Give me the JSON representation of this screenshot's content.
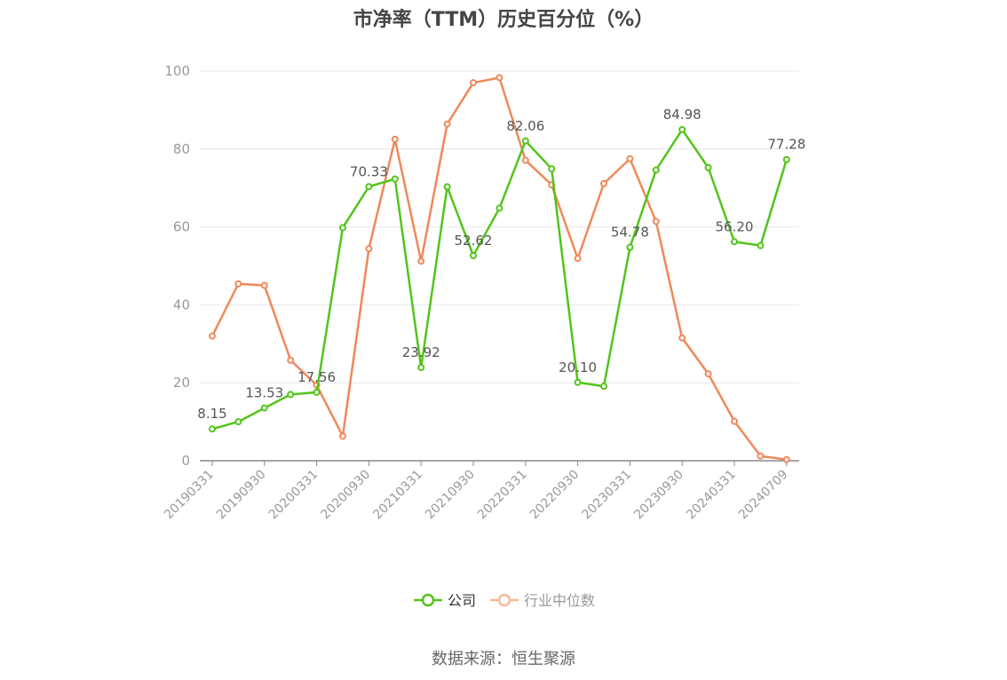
{
  "colors": {
    "company": "#52c41a",
    "industry": "#f0885a",
    "industry_legend": "#f5b99c",
    "axis": "#999999",
    "grid": "#e6e6ef",
    "text": "#666666",
    "label": "#555555"
  },
  "source": "数据来源：恒生聚源",
  "chart_data": {
    "type": "line",
    "title": "市净率（TTM）历史百分位（%）",
    "xlabel": "",
    "ylabel": "",
    "ylim": [
      0,
      100
    ],
    "yticks": [
      0,
      20,
      40,
      60,
      80,
      100
    ],
    "grid": true,
    "legend_position": "bottom",
    "x_tick_labels": [
      "20190331",
      "20190930",
      "20200331",
      "20200930",
      "20210331",
      "20210930",
      "20220331",
      "20220930",
      "20230331",
      "20230930",
      "20240331",
      "20240709"
    ],
    "x_tick_indices": [
      0,
      2,
      4,
      6,
      8,
      10,
      12,
      14,
      16,
      18,
      20,
      22
    ],
    "series": [
      {
        "name": "公司",
        "color_key": "company",
        "values": [
          8.15,
          10.0,
          13.53,
          17.0,
          17.56,
          59.8,
          70.33,
          72.3,
          23.92,
          70.3,
          52.62,
          64.8,
          82.06,
          74.9,
          20.1,
          19.1,
          54.78,
          74.6,
          84.98,
          75.2,
          56.2,
          55.2,
          77.28
        ],
        "point_labels": [
          {
            "index": 0,
            "text": "8.15"
          },
          {
            "index": 2,
            "text": "13.53"
          },
          {
            "index": 4,
            "text": "17.56"
          },
          {
            "index": 6,
            "text": "70.33"
          },
          {
            "index": 8,
            "text": "23.92"
          },
          {
            "index": 10,
            "text": "52.62"
          },
          {
            "index": 12,
            "text": "82.06"
          },
          {
            "index": 14,
            "text": "20.10"
          },
          {
            "index": 16,
            "text": "54.78"
          },
          {
            "index": 18,
            "text": "84.98"
          },
          {
            "index": 20,
            "text": "56.20"
          },
          {
            "index": 22,
            "text": "77.28"
          }
        ]
      },
      {
        "name": "行业中位数",
        "color_key": "industry",
        "values": [
          32.0,
          45.4,
          45.0,
          25.8,
          19.4,
          6.3,
          54.4,
          82.5,
          51.2,
          86.4,
          97.0,
          98.3,
          77.1,
          70.8,
          51.9,
          71.1,
          77.5,
          61.4,
          31.5,
          22.3,
          10.1,
          1.2,
          0.3
        ],
        "point_labels": []
      }
    ]
  }
}
